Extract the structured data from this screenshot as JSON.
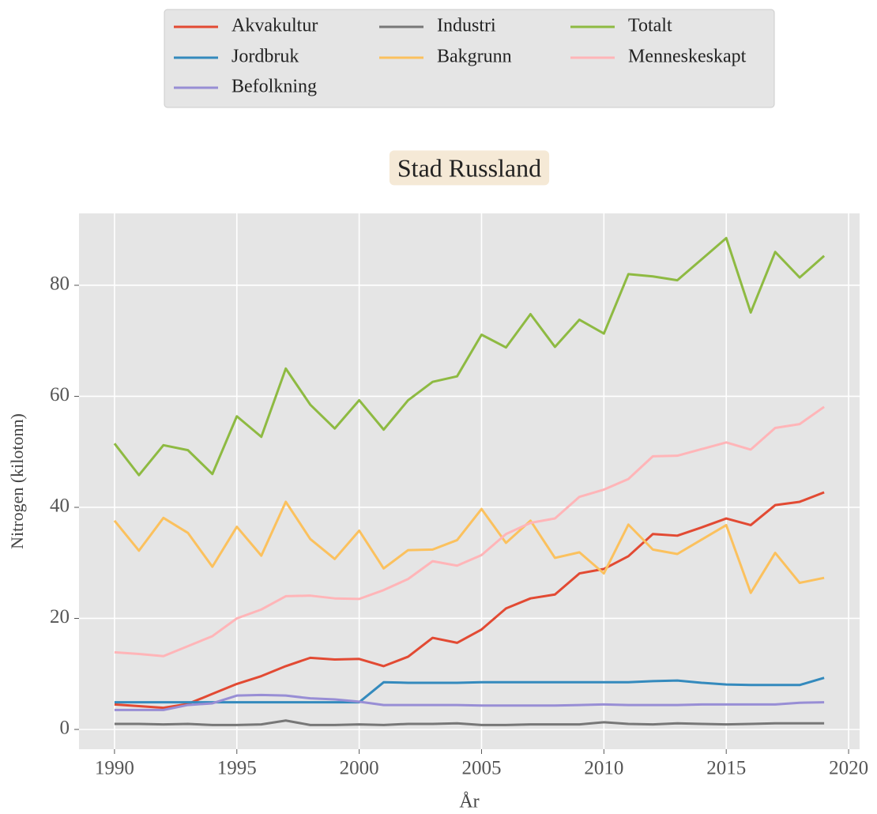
{
  "chart_data": {
    "type": "line",
    "title": "Stad Russland",
    "xlabel": "År",
    "ylabel": "Nitrogen (kilotonn)",
    "x": [
      1990,
      1991,
      1992,
      1993,
      1994,
      1995,
      1996,
      1997,
      1998,
      1999,
      2000,
      2001,
      2002,
      2003,
      2004,
      2005,
      2006,
      2007,
      2008,
      2009,
      2010,
      2011,
      2012,
      2013,
      2014,
      2015,
      2016,
      2017,
      2018,
      2019
    ],
    "series": [
      {
        "name": "Akvakultur",
        "color": "#E24A33",
        "values": [
          4.5,
          4.2,
          3.9,
          4.6,
          6.4,
          8.2,
          9.6,
          11.4,
          12.9,
          12.6,
          12.7,
          11.4,
          13.1,
          16.5,
          15.6,
          18,
          21.8,
          23.6,
          24.3,
          28.1,
          28.9,
          31.2,
          35.2,
          34.9,
          36.4,
          38,
          36.8,
          40.4,
          41,
          42.7
        ]
      },
      {
        "name": "Jordbruk",
        "color": "#348ABD",
        "values": [
          4.9,
          4.9,
          4.9,
          4.9,
          4.9,
          4.9,
          4.9,
          4.9,
          4.9,
          4.9,
          4.9,
          8.5,
          8.4,
          8.4,
          8.4,
          8.5,
          8.5,
          8.5,
          8.5,
          8.5,
          8.5,
          8.5,
          8.7,
          8.8,
          8.4,
          8.1,
          8,
          8,
          8,
          9.3
        ]
      },
      {
        "name": "Befolkning",
        "color": "#988ED5",
        "values": [
          3.5,
          3.5,
          3.5,
          4.4,
          4.7,
          6.1,
          6.2,
          6.1,
          5.6,
          5.4,
          5,
          4.4,
          4.4,
          4.4,
          4.4,
          4.3,
          4.3,
          4.3,
          4.3,
          4.4,
          4.5,
          4.4,
          4.4,
          4.4,
          4.5,
          4.5,
          4.5,
          4.5,
          4.8,
          4.9
        ]
      },
      {
        "name": "Industri",
        "color": "#777777",
        "values": [
          1,
          1,
          0.9,
          1,
          0.8,
          0.8,
          0.9,
          1.6,
          0.8,
          0.8,
          0.9,
          0.8,
          1,
          1,
          1.1,
          0.8,
          0.8,
          0.9,
          0.9,
          0.9,
          1.3,
          1,
          0.9,
          1.1,
          1,
          0.9,
          1,
          1.1,
          1.1,
          1.1
        ]
      },
      {
        "name": "Bakgrunn",
        "color": "#FBC15E",
        "values": [
          37.6,
          32.2,
          38.1,
          35.4,
          29.3,
          36.5,
          31.3,
          41,
          34.3,
          30.7,
          35.8,
          29,
          32.3,
          32.4,
          34.1,
          39.7,
          33.6,
          37.6,
          30.9,
          31.9,
          28.1,
          36.9,
          32.4,
          31.6,
          34.2,
          36.8,
          24.6,
          31.8,
          26.4,
          27.3
        ]
      },
      {
        "name": "Totalt",
        "color": "#8EBA42",
        "values": [
          51.5,
          45.8,
          51.2,
          50.3,
          46,
          56.4,
          52.7,
          65,
          58.5,
          54.2,
          59.3,
          54,
          59.3,
          62.6,
          63.6,
          71.1,
          68.8,
          74.8,
          68.9,
          73.8,
          71.3,
          82,
          81.6,
          80.9,
          84.7,
          88.5,
          75.1,
          86,
          81.4,
          85.3
        ]
      },
      {
        "name": "Menneskeskapt",
        "color": "#FFB5B8",
        "values": [
          13.9,
          13.6,
          13.2,
          15,
          16.8,
          20,
          21.6,
          24,
          24.1,
          23.6,
          23.5,
          25.1,
          27.1,
          30.3,
          29.5,
          31.4,
          35.2,
          37.2,
          38,
          41.9,
          43.2,
          45.1,
          49.2,
          49.3,
          50.5,
          51.7,
          50.4,
          54.3,
          55,
          58.1
        ]
      }
    ],
    "xlim": [
      1988.55,
      2020.45
    ],
    "ylim": [
      -3.56,
      92.95
    ],
    "xticks": [
      1990,
      1995,
      2000,
      2005,
      2010,
      2015,
      2020
    ],
    "yticks": [
      0,
      20,
      40,
      60,
      80
    ],
    "grid": true,
    "legend": "top",
    "legend_ncol": 3,
    "background": "#E5E5E5"
  }
}
